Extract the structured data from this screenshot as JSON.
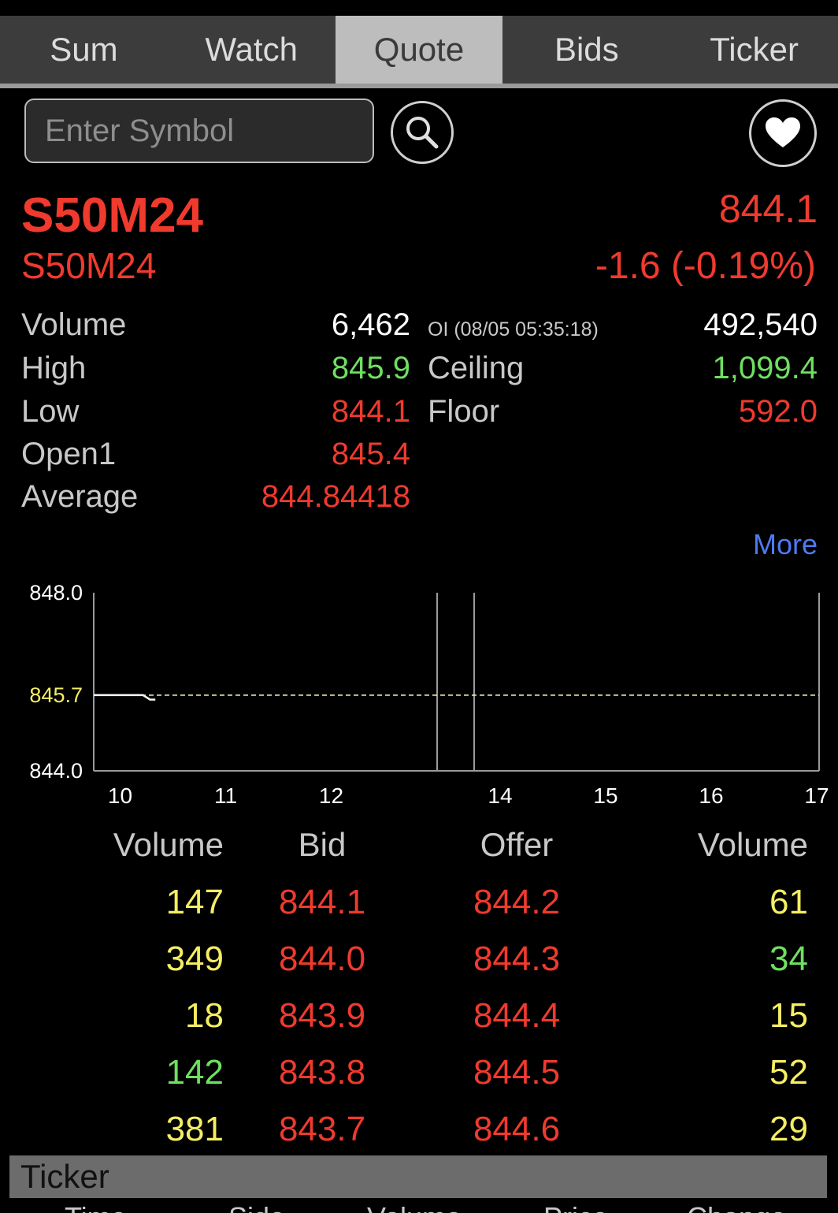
{
  "tabs": [
    "Sum",
    "Watch",
    "Quote",
    "Bids",
    "Ticker"
  ],
  "active_tab": "Quote",
  "search": {
    "placeholder": "Enter Symbol"
  },
  "icons": {
    "search": "search-icon",
    "favorite": "heart-icon"
  },
  "quote": {
    "symbol": "S50M24",
    "name": "S50M24",
    "last": "844.1",
    "change": "-1.6 (-0.19%)"
  },
  "stats": {
    "volume_label": "Volume",
    "volume": "6,462",
    "oi_label": "OI (08/05 05:35:18)",
    "oi": "492,540",
    "high_label": "High",
    "high": "845.9",
    "ceiling_label": "Ceiling",
    "ceiling": "1,099.4",
    "low_label": "Low",
    "low": "844.1",
    "floor_label": "Floor",
    "floor": "592.0",
    "open_label": "Open1",
    "open": "845.4",
    "avg_label": "Average",
    "avg": "844.84418"
  },
  "more_label": "More",
  "chart_data": {
    "type": "line",
    "y_ticks": [
      "848.0",
      "845.7",
      "844.0"
    ],
    "ylim": [
      844.0,
      848.0
    ],
    "reference_line": 845.7,
    "x_ticks": [
      "10",
      "11",
      "12",
      "14",
      "15",
      "16",
      "17"
    ],
    "series": [
      {
        "x": [
          "09:45",
          "10:13",
          "10:17",
          "10:20"
        ],
        "values": [
          845.7,
          845.7,
          845.6,
          845.6
        ]
      }
    ]
  },
  "orderbook": {
    "headers": [
      "Volume",
      "Bid",
      "Offer",
      "Volume"
    ],
    "rows": [
      {
        "bid_vol": "147",
        "bid": "844.1",
        "offer": "844.2",
        "offer_vol": "61"
      },
      {
        "bid_vol": "349",
        "bid": "844.0",
        "offer": "844.3",
        "offer_vol": "34"
      },
      {
        "bid_vol": "18",
        "bid": "843.9",
        "offer": "844.4",
        "offer_vol": "15"
      },
      {
        "bid_vol": "142",
        "bid": "843.8",
        "offer": "844.5",
        "offer_vol": "52"
      },
      {
        "bid_vol": "381",
        "bid": "843.7",
        "offer": "844.6",
        "offer_vol": "29"
      }
    ]
  },
  "ticker": {
    "title": "Ticker",
    "columns": [
      "Time",
      "Side",
      "Volume",
      "Price",
      "Change"
    ]
  },
  "colors": {
    "red": "#f03a2e",
    "green": "#6ee060",
    "yellow": "#f5ee63",
    "blue": "#4d7cf0"
  }
}
